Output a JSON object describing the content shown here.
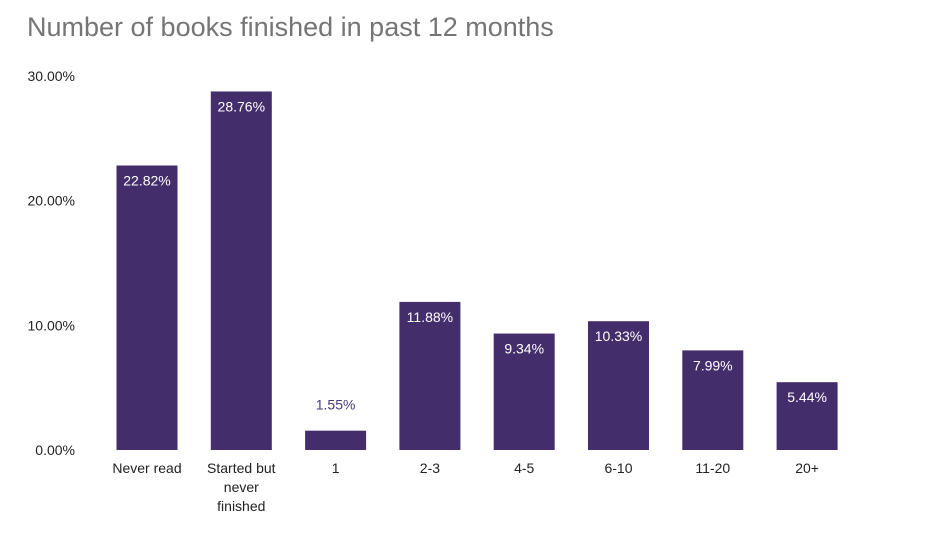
{
  "chart_data": {
    "type": "bar",
    "title": "Number of books finished in past 12 months",
    "xlabel": "",
    "ylabel": "",
    "categories": [
      "Never read",
      "Started but never finished",
      "1",
      "2-3",
      "4-5",
      "6-10",
      "11-20",
      "20+"
    ],
    "category_lines": [
      [
        "Never read"
      ],
      [
        "Started but",
        "never",
        "finished"
      ],
      [
        "1"
      ],
      [
        "2-3"
      ],
      [
        "4-5"
      ],
      [
        "6-10"
      ],
      [
        "11-20"
      ],
      [
        "20+"
      ]
    ],
    "values": [
      22.82,
      28.76,
      1.55,
      11.88,
      9.34,
      10.33,
      7.99,
      5.44
    ],
    "data_labels": [
      "22.82%",
      "28.76%",
      "1.55%",
      "11.88%",
      "9.34%",
      "10.33%",
      "7.99%",
      "5.44%"
    ],
    "ylim": [
      0,
      30
    ],
    "yticks": [
      0,
      10,
      20,
      30
    ],
    "ytick_labels": [
      "0.00%",
      "10.00%",
      "20.00%",
      "30.00%"
    ],
    "bar_color": "#432d6b",
    "inside_label_color": "#ffffff",
    "outside_label_color": "#4a3a7a",
    "grid": false,
    "legend": "none"
  }
}
